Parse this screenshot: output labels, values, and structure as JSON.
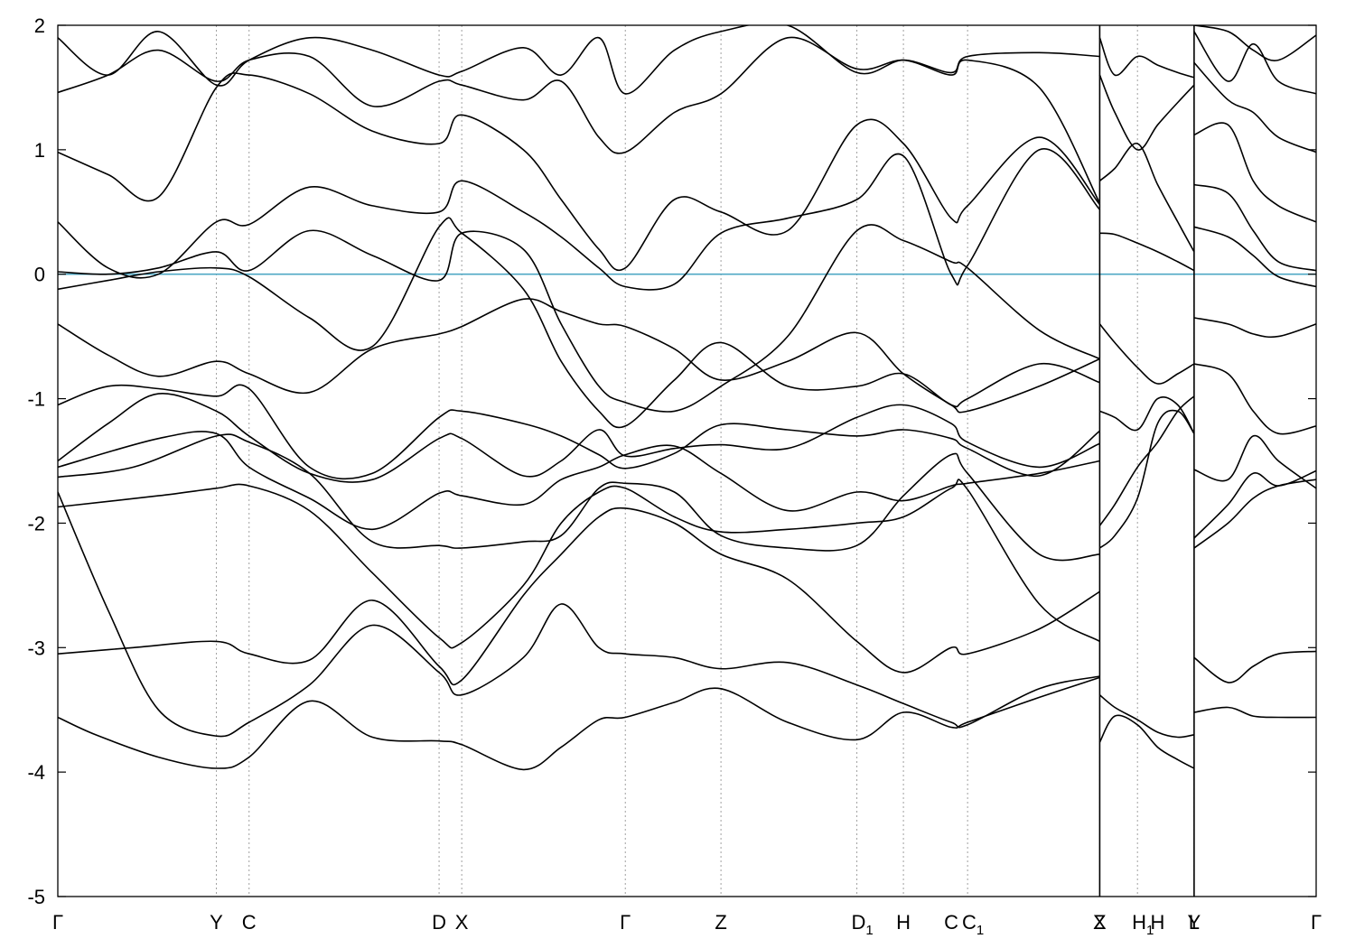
{
  "chart_data": {
    "type": "line",
    "title": "",
    "xlabel": "",
    "ylabel": "",
    "xlim": [
      0,
      1.0
    ],
    "ylim": [
      -5,
      2
    ],
    "y_ticks": [
      {
        "value": 2,
        "label": "2"
      },
      {
        "value": 1,
        "label": "1"
      },
      {
        "value": 0,
        "label": "0"
      },
      {
        "value": -1,
        "label": "-1"
      },
      {
        "value": -2,
        "label": "-2"
      },
      {
        "value": -3,
        "label": "-3"
      },
      {
        "value": -4,
        "label": "-4"
      },
      {
        "value": -5,
        "label": "-5"
      }
    ],
    "kpoints": [
      {
        "x": 0.0,
        "label": "Γ",
        "sub": ""
      },
      {
        "x": 0.126,
        "label": "Y",
        "sub": ""
      },
      {
        "x": 0.152,
        "label": "C",
        "sub": ""
      },
      {
        "x": 0.303,
        "label": "D",
        "sub": ""
      },
      {
        "x": 0.321,
        "label": "X",
        "sub": ""
      },
      {
        "x": 0.451,
        "label": "Γ",
        "sub": ""
      },
      {
        "x": 0.527,
        "label": "Z",
        "sub": ""
      },
      {
        "x": 0.635,
        "label": "D",
        "sub": "1"
      },
      {
        "x": 0.672,
        "label": "H",
        "sub": ""
      },
      {
        "x": 0.71,
        "label": "C",
        "sub": ""
      },
      {
        "x": 0.723,
        "label": "C",
        "sub": "1"
      },
      {
        "x": 0.828,
        "label": "Z",
        "sub": ""
      },
      {
        "x": 0.828,
        "label": "X",
        "sub": ""
      },
      {
        "x": 0.858,
        "label": "H",
        "sub": "1"
      },
      {
        "x": 0.874,
        "label": "H",
        "sub": ""
      },
      {
        "x": 0.903,
        "label": "Y",
        "sub": ""
      },
      {
        "x": 0.903,
        "label": "L",
        "sub": ""
      },
      {
        "x": 1.0,
        "label": "Γ",
        "sub": ""
      }
    ],
    "kpoint_lines": [
      0.126,
      0.152,
      0.303,
      0.321,
      0.451,
      0.527,
      0.635,
      0.672,
      0.723,
      0.828,
      0.858,
      0.903
    ],
    "discontinuities": [
      0.828,
      0.903
    ],
    "fermi_level": 0,
    "grid": false,
    "legend": "none",
    "colors": {
      "bands": "#000000",
      "fermi": "#4fa8c4",
      "vlines": "#a0a0a0"
    },
    "series": [
      {
        "x": [
          0.0,
          0.03,
          0.08,
          0.126,
          0.152,
          0.2,
          0.25,
          0.303,
          0.321,
          0.37,
          0.4,
          0.43,
          0.451,
          0.49,
          0.527,
          0.58,
          0.635,
          0.672,
          0.71,
          0.723,
          0.78,
          0.828
        ],
        "y": [
          -3.56,
          -3.7,
          -3.88,
          -3.97,
          -3.88,
          -3.43,
          -3.72,
          -3.75,
          -3.78,
          -3.98,
          -3.8,
          -3.58,
          -3.56,
          -3.44,
          -3.33,
          -3.6,
          -3.74,
          -3.52,
          -3.64,
          -3.6,
          -3.4,
          -3.24
        ]
      },
      {
        "x": [
          0.0,
          0.04,
          0.08,
          0.126,
          0.152,
          0.2,
          0.25,
          0.303,
          0.321,
          0.37,
          0.4,
          0.43,
          0.451,
          0.49,
          0.527,
          0.58,
          0.635,
          0.672,
          0.71,
          0.723,
          0.78,
          0.828
        ],
        "y": [
          -1.75,
          -2.7,
          -3.5,
          -3.71,
          -3.6,
          -3.3,
          -2.82,
          -3.2,
          -3.38,
          -3.08,
          -2.65,
          -3.0,
          -3.05,
          -3.08,
          -3.17,
          -3.12,
          -3.3,
          -3.45,
          -3.6,
          -3.62,
          -3.33,
          -3.23
        ]
      },
      {
        "x": [
          0.0,
          0.06,
          0.126,
          0.152,
          0.2,
          0.25,
          0.303,
          0.321,
          0.37,
          0.4,
          0.43,
          0.451,
          0.49,
          0.527,
          0.58,
          0.635,
          0.672,
          0.71,
          0.723,
          0.78,
          0.828
        ],
        "y": [
          -3.05,
          -3.0,
          -2.95,
          -3.05,
          -3.1,
          -2.62,
          -3.15,
          -3.26,
          -2.58,
          -2.25,
          -1.95,
          -1.88,
          -2.0,
          -2.25,
          -2.45,
          -2.95,
          -3.2,
          -3.0,
          -3.05,
          -2.85,
          -2.55
        ]
      },
      {
        "x": [
          0.0,
          0.08,
          0.126,
          0.152,
          0.2,
          0.25,
          0.303,
          0.321,
          0.37,
          0.4,
          0.43,
          0.451,
          0.49,
          0.527,
          0.58,
          0.635,
          0.672,
          0.71,
          0.723,
          0.78,
          0.828
        ],
        "y": [
          -1.87,
          -1.78,
          -1.72,
          -1.7,
          -1.9,
          -2.4,
          -2.92,
          -2.96,
          -2.5,
          -2.0,
          -1.75,
          -1.72,
          -1.95,
          -2.07,
          -2.05,
          -2.0,
          -1.95,
          -1.72,
          -1.73,
          -2.65,
          -2.95
        ]
      },
      {
        "x": [
          0.0,
          0.06,
          0.126,
          0.152,
          0.2,
          0.25,
          0.303,
          0.321,
          0.37,
          0.4,
          0.43,
          0.451,
          0.49,
          0.527,
          0.58,
          0.635,
          0.672,
          0.71,
          0.723,
          0.78,
          0.828
        ],
        "y": [
          -1.63,
          -1.55,
          -1.3,
          -1.35,
          -1.6,
          -2.15,
          -2.18,
          -2.2,
          -2.15,
          -2.1,
          -1.72,
          -1.68,
          -1.75,
          -2.1,
          -2.2,
          -2.18,
          -1.78,
          -1.45,
          -1.6,
          -2.25,
          -2.25
        ]
      },
      {
        "x": [
          0.0,
          0.08,
          0.126,
          0.152,
          0.2,
          0.25,
          0.303,
          0.321,
          0.37,
          0.4,
          0.43,
          0.451,
          0.49,
          0.527,
          0.58,
          0.635,
          0.672,
          0.71,
          0.723,
          0.78,
          0.828
        ],
        "y": [
          -1.55,
          -1.32,
          -1.28,
          -1.55,
          -1.8,
          -2.05,
          -1.76,
          -1.78,
          -1.85,
          -1.65,
          -1.55,
          -1.45,
          -1.38,
          -1.6,
          -1.9,
          -1.75,
          -1.82,
          -1.7,
          -1.68,
          -1.6,
          -1.5
        ]
      },
      {
        "x": [
          0.0,
          0.04,
          0.08,
          0.126,
          0.152,
          0.2,
          0.25,
          0.303,
          0.321,
          0.37,
          0.4,
          0.43,
          0.451,
          0.49,
          0.527,
          0.58,
          0.635,
          0.672,
          0.71,
          0.723,
          0.78,
          0.828
        ],
        "y": [
          -1.5,
          -1.2,
          -0.96,
          -1.1,
          -1.3,
          -1.6,
          -1.65,
          -1.32,
          -1.32,
          -1.62,
          -1.5,
          -1.25,
          -1.46,
          -1.4,
          -1.37,
          -1.4,
          -1.15,
          -1.05,
          -1.2,
          -1.35,
          -1.55,
          -1.36
        ]
      },
      {
        "x": [
          0.0,
          0.04,
          0.08,
          0.126,
          0.152,
          0.2,
          0.25,
          0.303,
          0.321,
          0.37,
          0.4,
          0.43,
          0.451,
          0.49,
          0.527,
          0.58,
          0.635,
          0.672,
          0.71,
          0.723,
          0.78,
          0.828
        ],
        "y": [
          -1.05,
          -0.9,
          -0.92,
          -0.98,
          -0.92,
          -1.55,
          -1.6,
          -1.15,
          -1.1,
          -1.2,
          -1.3,
          -1.45,
          -1.56,
          -1.44,
          -1.21,
          -1.25,
          -1.3,
          -1.25,
          -1.32,
          -1.4,
          -1.62,
          -1.26
        ]
      },
      {
        "x": [
          0.0,
          0.04,
          0.08,
          0.126,
          0.152,
          0.2,
          0.25,
          0.303,
          0.321,
          0.37,
          0.4,
          0.43,
          0.451,
          0.49,
          0.527,
          0.58,
          0.635,
          0.672,
          0.71,
          0.723,
          0.78,
          0.828
        ],
        "y": [
          -0.4,
          -0.65,
          -0.82,
          -0.7,
          -0.8,
          -0.95,
          -0.6,
          -0.48,
          -0.42,
          -0.2,
          -0.3,
          -0.4,
          -0.42,
          -0.6,
          -0.85,
          -0.7,
          -0.47,
          -0.8,
          -1.05,
          -1.1,
          -0.9,
          -0.68
        ]
      },
      {
        "x": [
          0.0,
          0.04,
          0.08,
          0.126,
          0.152,
          0.2,
          0.25,
          0.303,
          0.321,
          0.37,
          0.4,
          0.43,
          0.451,
          0.49,
          0.527,
          0.58,
          0.635,
          0.672,
          0.71,
          0.723,
          0.78,
          0.828
        ],
        "y": [
          -0.12,
          -0.05,
          0.02,
          0.05,
          -0.02,
          -0.35,
          -0.58,
          0.38,
          0.33,
          -0.12,
          -0.7,
          -1.1,
          -1.22,
          -0.85,
          -0.55,
          -0.9,
          -0.9,
          -0.8,
          -1.05,
          -1.0,
          -0.72,
          -0.87
        ]
      },
      {
        "x": [
          0.0,
          0.04,
          0.08,
          0.126,
          0.152,
          0.2,
          0.25,
          0.303,
          0.321,
          0.37,
          0.4,
          0.43,
          0.451,
          0.49,
          0.527,
          0.58,
          0.635,
          0.672,
          0.71,
          0.723,
          0.78,
          0.828
        ],
        "y": [
          0.02,
          0.0,
          0.05,
          0.18,
          0.03,
          0.35,
          0.15,
          -0.05,
          0.33,
          0.2,
          -0.4,
          -0.9,
          -1.03,
          -1.1,
          -0.9,
          -0.5,
          0.35,
          0.27,
          0.1,
          0.05,
          -0.45,
          -0.68
        ]
      },
      {
        "x": [
          0.0,
          0.04,
          0.08,
          0.126,
          0.152,
          0.2,
          0.25,
          0.303,
          0.321,
          0.37,
          0.4,
          0.43,
          0.451,
          0.49,
          0.527,
          0.58,
          0.635,
          0.672,
          0.71,
          0.723,
          0.78,
          0.828
        ],
        "y": [
          0.42,
          0.05,
          0.0,
          0.42,
          0.4,
          0.7,
          0.55,
          0.5,
          0.75,
          0.5,
          0.3,
          0.05,
          -0.1,
          -0.08,
          0.33,
          0.45,
          0.6,
          0.95,
          0.0,
          0.07,
          1.0,
          0.52
        ]
      },
      {
        "x": [
          0.0,
          0.04,
          0.08,
          0.126,
          0.152,
          0.2,
          0.25,
          0.303,
          0.321,
          0.37,
          0.4,
          0.43,
          0.451,
          0.49,
          0.527,
          0.58,
          0.635,
          0.672,
          0.71,
          0.723,
          0.78,
          0.828
        ],
        "y": [
          0.98,
          0.8,
          0.62,
          1.5,
          1.6,
          1.45,
          1.15,
          1.05,
          1.28,
          1.0,
          0.6,
          0.2,
          0.05,
          0.6,
          0.5,
          0.35,
          1.2,
          1.05,
          0.45,
          0.55,
          1.1,
          0.56
        ]
      },
      {
        "x": [
          0.0,
          0.04,
          0.08,
          0.126,
          0.152,
          0.2,
          0.25,
          0.303,
          0.321,
          0.37,
          0.4,
          0.43,
          0.451,
          0.49,
          0.527,
          0.58,
          0.635,
          0.672,
          0.71,
          0.723,
          0.78,
          0.828
        ],
        "y": [
          1.46,
          1.6,
          1.8,
          1.55,
          1.72,
          1.75,
          1.35,
          1.55,
          1.52,
          1.4,
          1.55,
          1.1,
          0.98,
          1.3,
          1.45,
          1.9,
          1.65,
          1.72,
          1.6,
          1.72,
          1.5,
          0.57
        ]
      },
      {
        "x": [
          0.0,
          0.04,
          0.08,
          0.126,
          0.152,
          0.2,
          0.25,
          0.303,
          0.321,
          0.37,
          0.4,
          0.43,
          0.451,
          0.49,
          0.527,
          0.58,
          0.635,
          0.672,
          0.71,
          0.723,
          0.78,
          0.828
        ],
        "y": [
          1.9,
          1.6,
          1.95,
          1.52,
          1.72,
          1.9,
          1.8,
          1.6,
          1.63,
          1.82,
          1.6,
          1.9,
          1.45,
          1.8,
          1.95,
          2.0,
          1.62,
          1.72,
          1.62,
          1.75,
          1.78,
          1.75
        ]
      },
      {
        "x": [
          0.828,
          0.84,
          0.858,
          0.874,
          0.89,
          0.903
        ],
        "y": [
          -3.76,
          -3.55,
          -3.62,
          -3.8,
          -3.9,
          -3.97
        ]
      },
      {
        "x": [
          0.828,
          0.84,
          0.858,
          0.874,
          0.89,
          0.903
        ],
        "y": [
          -3.38,
          -3.48,
          -3.58,
          -3.68,
          -3.72,
          -3.7
        ]
      },
      {
        "x": [
          0.828,
          0.84,
          0.858,
          0.874,
          0.89,
          0.903
        ],
        "y": [
          -2.2,
          -2.1,
          -1.8,
          -1.2,
          -1.1,
          -1.28
        ]
      },
      {
        "x": [
          0.828,
          0.84,
          0.858,
          0.874,
          0.89,
          0.903
        ],
        "y": [
          -2.02,
          -1.85,
          -1.55,
          -1.35,
          -1.1,
          -0.98
        ]
      },
      {
        "x": [
          0.828,
          0.84,
          0.858,
          0.874,
          0.89,
          0.903
        ],
        "y": [
          -1.1,
          -1.15,
          -1.25,
          -1.0,
          -1.05,
          -1.28
        ]
      },
      {
        "x": [
          0.828,
          0.84,
          0.858,
          0.874,
          0.89,
          0.903
        ],
        "y": [
          -0.4,
          -0.55,
          -0.75,
          -0.88,
          -0.8,
          -0.72
        ]
      },
      {
        "x": [
          0.828,
          0.84,
          0.858,
          0.874,
          0.89,
          0.903
        ],
        "y": [
          0.33,
          0.32,
          0.25,
          0.18,
          0.1,
          0.03
        ]
      },
      {
        "x": [
          0.828,
          0.84,
          0.858,
          0.874,
          0.89,
          0.903
        ],
        "y": [
          0.75,
          0.85,
          1.05,
          0.72,
          0.42,
          0.18
        ]
      },
      {
        "x": [
          0.828,
          0.84,
          0.858,
          0.874,
          0.89,
          0.903
        ],
        "y": [
          1.6,
          1.3,
          1.0,
          1.2,
          1.38,
          1.52
        ]
      },
      {
        "x": [
          0.828,
          0.84,
          0.858,
          0.874,
          0.89,
          0.903
        ],
        "y": [
          1.9,
          1.6,
          1.75,
          1.68,
          1.62,
          1.58
        ]
      },
      {
        "x": [
          0.903,
          0.93,
          0.95,
          0.97,
          1.0
        ],
        "y": [
          -3.52,
          -3.48,
          -3.55,
          -3.56,
          -3.56
        ]
      },
      {
        "x": [
          0.903,
          0.93,
          0.95,
          0.97,
          1.0
        ],
        "y": [
          -3.08,
          -3.28,
          -3.15,
          -3.05,
          -3.03
        ]
      },
      {
        "x": [
          0.903,
          0.93,
          0.95,
          0.97,
          1.0
        ],
        "y": [
          -2.2,
          -2.0,
          -1.8,
          -1.7,
          -1.65
        ]
      },
      {
        "x": [
          0.903,
          0.93,
          0.95,
          0.97,
          1.0
        ],
        "y": [
          -2.12,
          -1.85,
          -1.6,
          -1.7,
          -1.58
        ]
      },
      {
        "x": [
          0.903,
          0.93,
          0.95,
          0.97,
          1.0
        ],
        "y": [
          -1.57,
          -1.65,
          -1.3,
          -1.5,
          -1.72
        ]
      },
      {
        "x": [
          0.903,
          0.93,
          0.95,
          0.97,
          1.0
        ],
        "y": [
          -0.72,
          -0.8,
          -1.1,
          -1.28,
          -1.22
        ]
      },
      {
        "x": [
          0.903,
          0.93,
          0.95,
          0.97,
          1.0
        ],
        "y": [
          -0.35,
          -0.4,
          -0.48,
          -0.5,
          -0.4
        ]
      },
      {
        "x": [
          0.903,
          0.93,
          0.95,
          0.97,
          1.0
        ],
        "y": [
          0.38,
          0.3,
          0.15,
          -0.02,
          -0.1
        ]
      },
      {
        "x": [
          0.903,
          0.93,
          0.95,
          0.97,
          1.0
        ],
        "y": [
          0.72,
          0.65,
          0.35,
          0.1,
          0.03
        ]
      },
      {
        "x": [
          0.903,
          0.93,
          0.95,
          0.97,
          1.0
        ],
        "y": [
          1.12,
          1.2,
          0.75,
          0.55,
          0.42
        ]
      },
      {
        "x": [
          0.903,
          0.93,
          0.95,
          0.97,
          1.0
        ],
        "y": [
          1.7,
          1.4,
          1.3,
          1.1,
          0.98
        ]
      },
      {
        "x": [
          0.903,
          0.93,
          0.95,
          0.97,
          1.0
        ],
        "y": [
          1.95,
          1.55,
          1.85,
          1.55,
          1.45
        ]
      },
      {
        "x": [
          0.903,
          0.93,
          0.95,
          0.97,
          1.0
        ],
        "y": [
          2.0,
          1.95,
          1.8,
          1.72,
          1.92
        ]
      }
    ]
  }
}
